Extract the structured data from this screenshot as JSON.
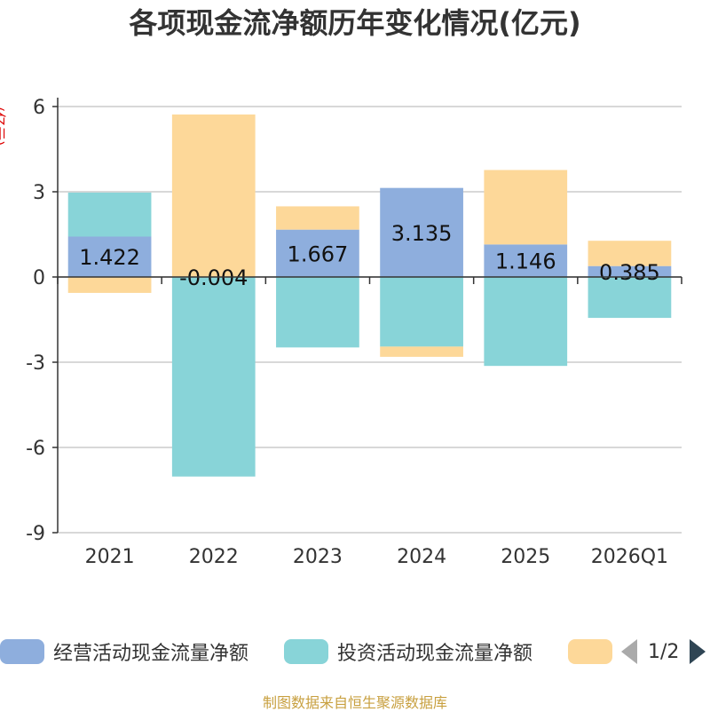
{
  "page": {
    "title": "各项现金流净额历年变化情况(亿元)",
    "unit_label": "(亿元)",
    "source": "制图数据来自恒生聚源数据库",
    "pager_text": "1/2"
  },
  "legend": [
    {
      "label": "经营活动现金流量净额",
      "color": "#8eaedd"
    },
    {
      "label": "投资活动现金流量净额",
      "color": "#88d4d8"
    },
    {
      "label": "",
      "color": "#fdd899"
    }
  ],
  "chart_data": {
    "type": "bar",
    "stacked": true,
    "categories": [
      "2021",
      "2022",
      "2023",
      "2024",
      "2025",
      "2026Q1"
    ],
    "ylim": [
      -9,
      6
    ],
    "yticks": [
      6,
      3,
      0,
      -3,
      -6,
      -9
    ],
    "series": [
      {
        "name": "经营活动现金流量净额",
        "color": "#8eaedd",
        "values": [
          1.422,
          -0.004,
          1.667,
          3.135,
          1.146,
          0.385
        ],
        "labels": [
          "1.422",
          "-0.004",
          "1.667",
          "3.135",
          "1.146",
          "0.385"
        ]
      },
      {
        "name": "投资活动现金流量净额",
        "color": "#88d4d8",
        "values": [
          1.55,
          -7.02,
          -2.48,
          -2.45,
          -3.13,
          -1.44
        ]
      },
      {
        "color": "#fdd899",
        "values": [
          -0.56,
          5.72,
          0.82,
          -0.36,
          2.62,
          0.89
        ]
      }
    ]
  }
}
